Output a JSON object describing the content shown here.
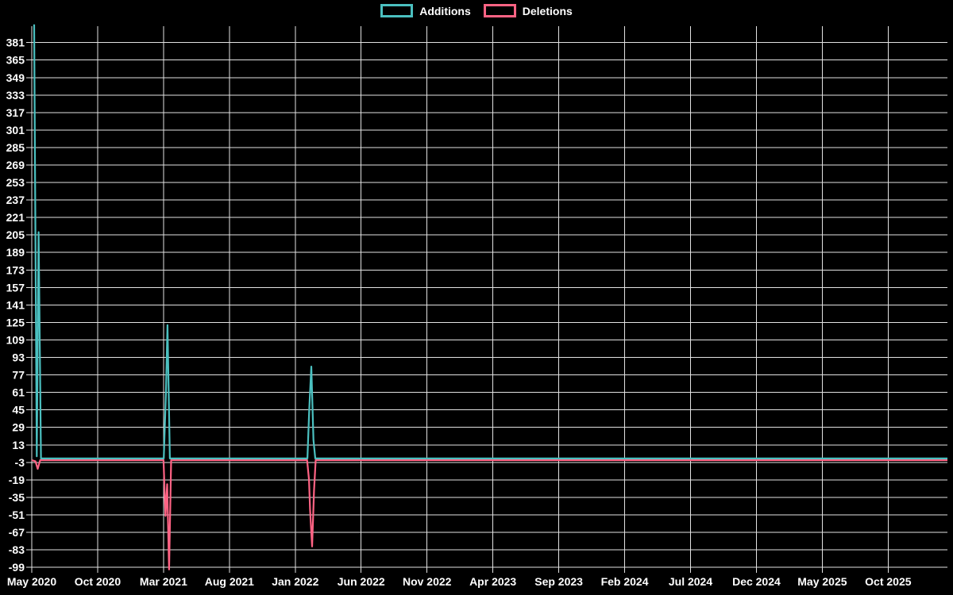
{
  "chart_data": {
    "type": "line",
    "title": "",
    "legend_position": "top",
    "background_color": "#000000",
    "grid": {
      "show": true,
      "color": "#e2e2e2"
    },
    "text_color": "#ffffff",
    "x_axis": {
      "kind": "time",
      "tick_labels": [
        "May 2020",
        "Oct 2020",
        "Mar 2021",
        "Aug 2021",
        "Jan 2022",
        "Jun 2022",
        "Nov 2022",
        "Apr 2023",
        "Sep 2023",
        "Feb 2024",
        "Jul 2024",
        "Dec 2024",
        "May 2025",
        "Oct 2025"
      ],
      "months_per_tick": 5,
      "range_months": [
        0,
        69.5
      ]
    },
    "y_axis": {
      "ticks": [
        381,
        365,
        349,
        333,
        317,
        301,
        285,
        269,
        253,
        237,
        221,
        205,
        189,
        173,
        157,
        141,
        125,
        109,
        93,
        77,
        61,
        45,
        29,
        13,
        -3,
        -19,
        -35,
        -51,
        -67,
        -83,
        -99
      ],
      "range": [
        -104,
        396
      ]
    },
    "series": [
      {
        "name": "Additions",
        "color": "#4bc0c0",
        "points": [
          [
            0.18,
            397
          ],
          [
            0.38,
            2
          ],
          [
            0.52,
            207
          ],
          [
            0.7,
            0
          ],
          [
            10.02,
            0
          ],
          [
            10.18,
            59
          ],
          [
            10.3,
            122
          ],
          [
            10.48,
            0
          ],
          [
            20.92,
            0
          ],
          [
            21.06,
            45
          ],
          [
            21.22,
            84
          ],
          [
            21.38,
            17
          ],
          [
            21.52,
            0
          ],
          [
            69.5,
            0
          ]
        ]
      },
      {
        "name": "Deletions",
        "color": "#ff6384",
        "points": [
          [
            0,
            0
          ],
          [
            0.28,
            -1
          ],
          [
            0.45,
            -8
          ],
          [
            0.64,
            0
          ],
          [
            10.0,
            0
          ],
          [
            10.15,
            -51
          ],
          [
            10.28,
            -22
          ],
          [
            10.42,
            -100
          ],
          [
            10.58,
            0
          ],
          [
            20.9,
            0
          ],
          [
            21.04,
            -18
          ],
          [
            21.12,
            -45
          ],
          [
            21.28,
            -79
          ],
          [
            21.42,
            -28
          ],
          [
            21.55,
            0
          ],
          [
            69.5,
            0
          ]
        ]
      }
    ]
  }
}
